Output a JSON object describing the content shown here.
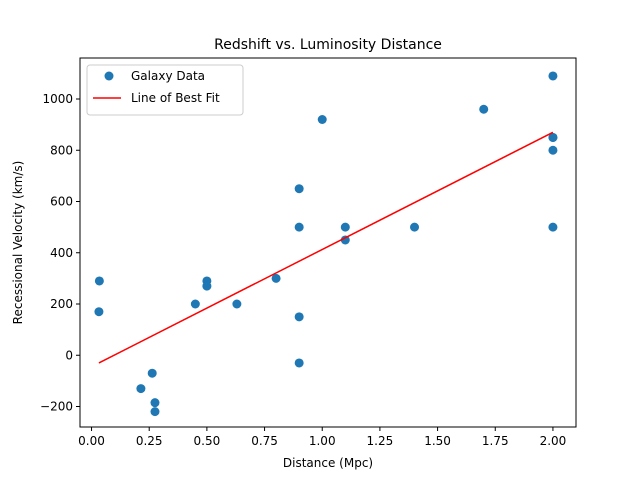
{
  "chart_data": {
    "type": "scatter",
    "title": "Redshift vs. Luminosity Distance",
    "xlabel": "Distance (Mpc)",
    "ylabel": "Recessional Velocity (km/s)",
    "xlim": [
      -0.05,
      2.1
    ],
    "ylim": [
      -280,
      1160
    ],
    "xticks": [
      0.0,
      0.25,
      0.5,
      0.75,
      1.0,
      1.25,
      1.5,
      1.75,
      2.0
    ],
    "xtick_labels": [
      "0.00",
      "0.25",
      "0.50",
      "0.75",
      "1.00",
      "1.25",
      "1.50",
      "1.75",
      "2.00"
    ],
    "yticks": [
      -200,
      0,
      200,
      400,
      600,
      800,
      1000
    ],
    "ytick_labels": [
      "−200",
      "0",
      "200",
      "400",
      "600",
      "800",
      "1000"
    ],
    "grid": false,
    "legend_position": "top-left",
    "series": [
      {
        "name": "Galaxy Data",
        "kind": "scatter",
        "color": "#1f77b4",
        "x": [
          0.032,
          0.034,
          0.214,
          0.263,
          0.275,
          0.275,
          0.45,
          0.5,
          0.5,
          0.63,
          0.8,
          0.9,
          0.9,
          0.9,
          0.9,
          1.0,
          1.1,
          1.1,
          1.4,
          1.7,
          2.0,
          2.0,
          2.0,
          2.0,
          2.0
        ],
        "y": [
          170,
          290,
          -130,
          -70,
          -185,
          -220,
          200,
          290,
          270,
          200,
          300,
          -30,
          650,
          150,
          500,
          920,
          450,
          500,
          500,
          960,
          500,
          850,
          800,
          1090,
          850
        ]
      },
      {
        "name": "Line of Best Fit",
        "kind": "line",
        "color": "#ff0000",
        "x": [
          0.032,
          2.0
        ],
        "y": [
          -30,
          870
        ]
      }
    ]
  }
}
